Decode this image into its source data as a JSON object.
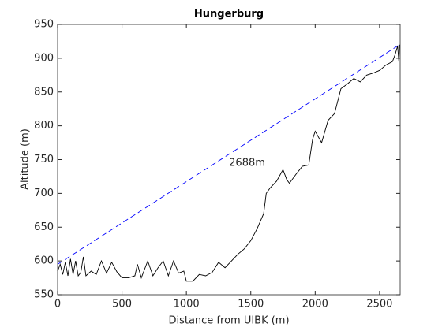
{
  "chart_data": {
    "type": "line",
    "title": "Hungerburg",
    "xlabel": "Distance from UIBK (m)",
    "ylabel": "Altitude (m)",
    "annotations": [
      {
        "text": "2688m",
        "x": 1331,
        "y": 745
      }
    ],
    "xlim": [
      0,
      2660
    ],
    "xticks": [
      0,
      500,
      1000,
      1500,
      2000,
      2500
    ],
    "ylim": [
      550,
      950
    ],
    "yticks": [
      550,
      600,
      650,
      700,
      750,
      800,
      850,
      900,
      950
    ],
    "series": [
      {
        "color": "#000000",
        "dash": false,
        "x": [
          0,
          20,
          40,
          60,
          80,
          100,
          120,
          140,
          160,
          180,
          200,
          220,
          260,
          300,
          340,
          380,
          420,
          460,
          500,
          550,
          600,
          620,
          650,
          700,
          740,
          780,
          820,
          860,
          900,
          940,
          980,
          1000,
          1050,
          1100,
          1150,
          1200,
          1250,
          1300,
          1350,
          1400,
          1450,
          1500,
          1550,
          1600,
          1620,
          1650,
          1700,
          1750,
          1780,
          1800,
          1850,
          1900,
          1950,
          1980,
          2000,
          2050,
          2100,
          2150,
          2200,
          2250,
          2300,
          2350,
          2400,
          2450,
          2500,
          2550,
          2600,
          2620,
          2640,
          2650,
          2655
        ],
        "values": [
          585,
          595,
          580,
          598,
          578,
          603,
          580,
          600,
          578,
          583,
          606,
          578,
          585,
          580,
          600,
          582,
          598,
          584,
          575,
          575,
          578,
          595,
          575,
          600,
          578,
          590,
          600,
          578,
          600,
          582,
          585,
          570,
          570,
          580,
          578,
          583,
          598,
          590,
          600,
          610,
          618,
          630,
          648,
          670,
          700,
          708,
          718,
          735,
          720,
          715,
          728,
          740,
          742,
          780,
          792,
          775,
          808,
          818,
          855,
          862,
          870,
          865,
          875,
          878,
          882,
          890,
          895,
          905,
          918,
          895,
          920
        ]
      },
      {
        "color": "#0000ff",
        "dash": true,
        "x": [
          0,
          2655
        ],
        "values": [
          595,
          920
        ]
      }
    ]
  }
}
